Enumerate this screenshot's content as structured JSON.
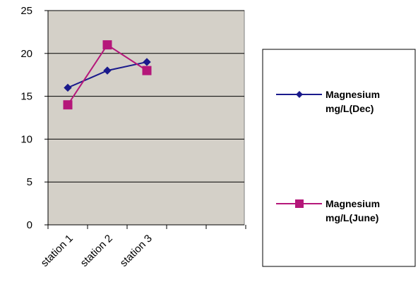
{
  "chart_data": {
    "type": "line",
    "title": "",
    "xlabel": "",
    "ylabel": "",
    "categories": [
      "station 1",
      "station 2",
      "station 3"
    ],
    "ylim": [
      0,
      25
    ],
    "yticks": [
      0,
      5,
      10,
      15,
      20,
      25
    ],
    "grid": "horizontal",
    "plot_background": "#d4d0c8",
    "legend_position": "right",
    "series": [
      {
        "name": "Magnesium mg/L(Dec)",
        "legend_lines": [
          "Magnesium",
          "mg/L(Dec)"
        ],
        "values": [
          16,
          18,
          19
        ],
        "color": "#1a1a8c",
        "marker": "diamond"
      },
      {
        "name": "Magnesium mg/L(June)",
        "legend_lines": [
          "Magnesium",
          "mg/L(June)"
        ],
        "values": [
          14,
          21,
          18
        ],
        "color": "#b5177a",
        "marker": "square"
      }
    ]
  }
}
